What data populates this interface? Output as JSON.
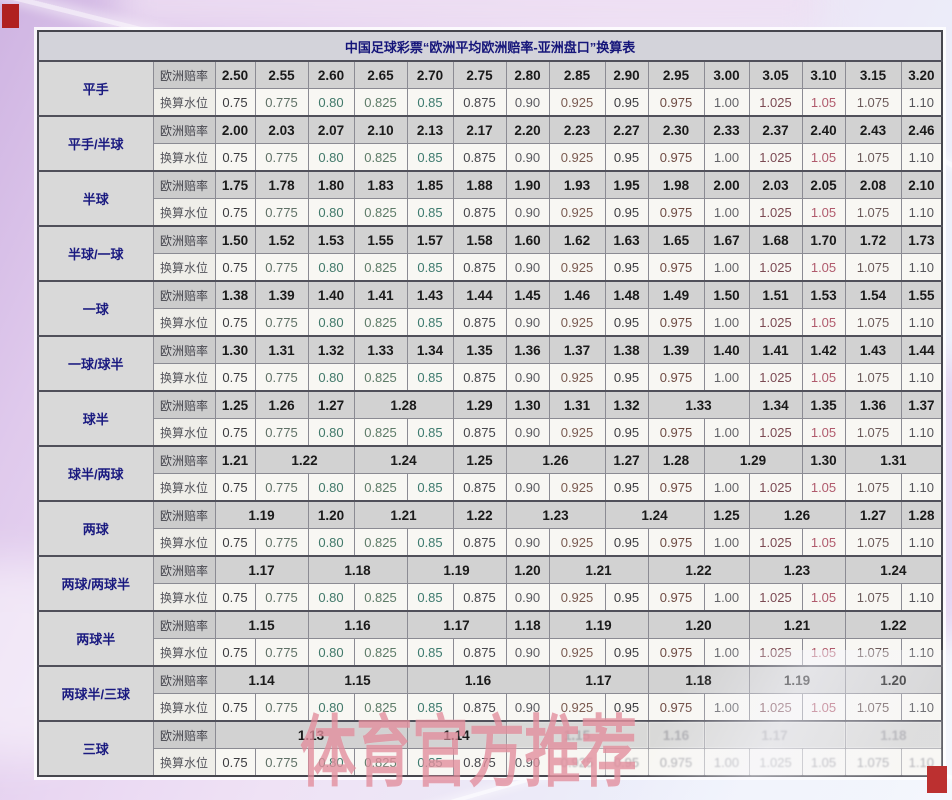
{
  "title": "中国足球彩票“欧洲平均欧洲赔率-亚洲盘口”换算表",
  "labels": {
    "odds": "欧洲赔率",
    "water": "换算水位"
  },
  "water_levels": [
    "0.75",
    "0.775",
    "0.80",
    "0.825",
    "0.85",
    "0.875",
    "0.90",
    "0.925",
    "0.95",
    "0.975",
    "1.00",
    "1.025",
    "1.05",
    "1.075",
    "1.10"
  ],
  "blocks": [
    {
      "handicap": "平手",
      "odds": [
        [
          "2.50",
          1
        ],
        [
          "2.55",
          1
        ],
        [
          "2.60",
          1
        ],
        [
          "2.65",
          1
        ],
        [
          "2.70",
          1
        ],
        [
          "2.75",
          1
        ],
        [
          "2.80",
          1
        ],
        [
          "2.85",
          1
        ],
        [
          "2.90",
          1
        ],
        [
          "2.95",
          1
        ],
        [
          "3.00",
          1
        ],
        [
          "3.05",
          1
        ],
        [
          "3.10",
          1
        ],
        [
          "3.15",
          1
        ],
        [
          "3.20",
          1
        ]
      ]
    },
    {
      "handicap": "平手/半球",
      "odds": [
        [
          "2.00",
          1
        ],
        [
          "2.03",
          1
        ],
        [
          "2.07",
          1
        ],
        [
          "2.10",
          1
        ],
        [
          "2.13",
          1
        ],
        [
          "2.17",
          1
        ],
        [
          "2.20",
          1
        ],
        [
          "2.23",
          1
        ],
        [
          "2.27",
          1
        ],
        [
          "2.30",
          1
        ],
        [
          "2.33",
          1
        ],
        [
          "2.37",
          1
        ],
        [
          "2.40",
          1
        ],
        [
          "2.43",
          1
        ],
        [
          "2.46",
          1
        ]
      ]
    },
    {
      "handicap": "半球",
      "odds": [
        [
          "1.75",
          1
        ],
        [
          "1.78",
          1
        ],
        [
          "1.80",
          1
        ],
        [
          "1.83",
          1
        ],
        [
          "1.85",
          1
        ],
        [
          "1.88",
          1
        ],
        [
          "1.90",
          1
        ],
        [
          "1.93",
          1
        ],
        [
          "1.95",
          1
        ],
        [
          "1.98",
          1
        ],
        [
          "2.00",
          1
        ],
        [
          "2.03",
          1
        ],
        [
          "2.05",
          1
        ],
        [
          "2.08",
          1
        ],
        [
          "2.10",
          1
        ]
      ]
    },
    {
      "handicap": "半球/一球",
      "odds": [
        [
          "1.50",
          1
        ],
        [
          "1.52",
          1
        ],
        [
          "1.53",
          1
        ],
        [
          "1.55",
          1
        ],
        [
          "1.57",
          1
        ],
        [
          "1.58",
          1
        ],
        [
          "1.60",
          1
        ],
        [
          "1.62",
          1
        ],
        [
          "1.63",
          1
        ],
        [
          "1.65",
          1
        ],
        [
          "1.67",
          1
        ],
        [
          "1.68",
          1
        ],
        [
          "1.70",
          1
        ],
        [
          "1.72",
          1
        ],
        [
          "1.73",
          1
        ]
      ]
    },
    {
      "handicap": "一球",
      "odds": [
        [
          "1.38",
          1
        ],
        [
          "1.39",
          1
        ],
        [
          "1.40",
          1
        ],
        [
          "1.41",
          1
        ],
        [
          "1.43",
          1
        ],
        [
          "1.44",
          1
        ],
        [
          "1.45",
          1
        ],
        [
          "1.46",
          1
        ],
        [
          "1.48",
          1
        ],
        [
          "1.49",
          1
        ],
        [
          "1.50",
          1
        ],
        [
          "1.51",
          1
        ],
        [
          "1.53",
          1
        ],
        [
          "1.54",
          1
        ],
        [
          "1.55",
          1
        ]
      ]
    },
    {
      "handicap": "一球/球半",
      "odds": [
        [
          "1.30",
          1
        ],
        [
          "1.31",
          1
        ],
        [
          "1.32",
          1
        ],
        [
          "1.33",
          1
        ],
        [
          "1.34",
          1
        ],
        [
          "1.35",
          1
        ],
        [
          "1.36",
          1
        ],
        [
          "1.37",
          1
        ],
        [
          "1.38",
          1
        ],
        [
          "1.39",
          1
        ],
        [
          "1.40",
          1
        ],
        [
          "1.41",
          1
        ],
        [
          "1.42",
          1
        ],
        [
          "1.43",
          1
        ],
        [
          "1.44",
          1
        ]
      ]
    },
    {
      "handicap": "球半",
      "odds": [
        [
          "1.25",
          1
        ],
        [
          "1.26",
          1
        ],
        [
          "1.27",
          1
        ],
        [
          "1.28",
          2
        ],
        [
          "1.29",
          1
        ],
        [
          "1.30",
          1
        ],
        [
          "1.31",
          1
        ],
        [
          "1.32",
          1
        ],
        [
          "1.33",
          2
        ],
        [
          "1.34",
          1
        ],
        [
          "1.35",
          1
        ],
        [
          "1.36",
          1
        ],
        [
          "1.37",
          1
        ]
      ]
    },
    {
      "handicap": "球半/两球",
      "odds": [
        [
          "1.21",
          1
        ],
        [
          "1.22",
          2
        ],
        [
          "1.24",
          2
        ],
        [
          "1.25",
          1
        ],
        [
          "1.26",
          2
        ],
        [
          "1.27",
          1
        ],
        [
          "1.28",
          1
        ],
        [
          "1.29",
          2
        ],
        [
          "1.30",
          1
        ],
        [
          "1.31",
          2
        ]
      ]
    },
    {
      "handicap": "两球",
      "odds": [
        [
          "1.19",
          2
        ],
        [
          "1.20",
          1
        ],
        [
          "1.21",
          2
        ],
        [
          "1.22",
          1
        ],
        [
          "1.23",
          2
        ],
        [
          "1.24",
          2
        ],
        [
          "1.25",
          1
        ],
        [
          "1.26",
          2
        ],
        [
          "1.27",
          1
        ],
        [
          "1.28",
          1
        ]
      ]
    },
    {
      "handicap": "两球/两球半",
      "odds": [
        [
          "1.17",
          2
        ],
        [
          "1.18",
          2
        ],
        [
          "1.19",
          2
        ],
        [
          "1.20",
          1
        ],
        [
          "1.21",
          2
        ],
        [
          "1.22",
          2
        ],
        [
          "1.23",
          2
        ],
        [
          "1.24",
          2
        ]
      ]
    },
    {
      "handicap": "两球半",
      "odds": [
        [
          "1.15",
          2
        ],
        [
          "1.16",
          2
        ],
        [
          "1.17",
          2
        ],
        [
          "1.18",
          1
        ],
        [
          "1.19",
          2
        ],
        [
          "1.20",
          2
        ],
        [
          "1.21",
          2
        ],
        [
          "1.22",
          2
        ]
      ]
    },
    {
      "handicap": "两球半/三球",
      "odds": [
        [
          "1.14",
          2
        ],
        [
          "1.15",
          2
        ],
        [
          "1.16",
          3
        ],
        [
          "1.17",
          2
        ],
        [
          "1.18",
          2
        ],
        [
          "1.19",
          2
        ],
        [
          "1.20",
          2
        ]
      ]
    },
    {
      "handicap": "三球",
      "odds": [
        [
          "1.13",
          4
        ],
        [
          "1.14",
          2
        ],
        [
          "1.15",
          3,
          1
        ],
        [
          "1.16",
          1,
          1
        ],
        [
          "1.17",
          3,
          1
        ],
        [
          "1.18",
          2,
          1
        ]
      ],
      "water_degraded_from": 7
    }
  ],
  "watermark": "体育官方推荐",
  "colors": {
    "accent_navy": "#1a1a80",
    "title_navy": "#15157a",
    "odds_row_bg": "#d2d2d2",
    "water_row_bg": "#f8f7f3",
    "watermark_pink": "#ce5266",
    "corner_mark_red": "#b02020",
    "page_lavender": "#e9d7f2"
  }
}
